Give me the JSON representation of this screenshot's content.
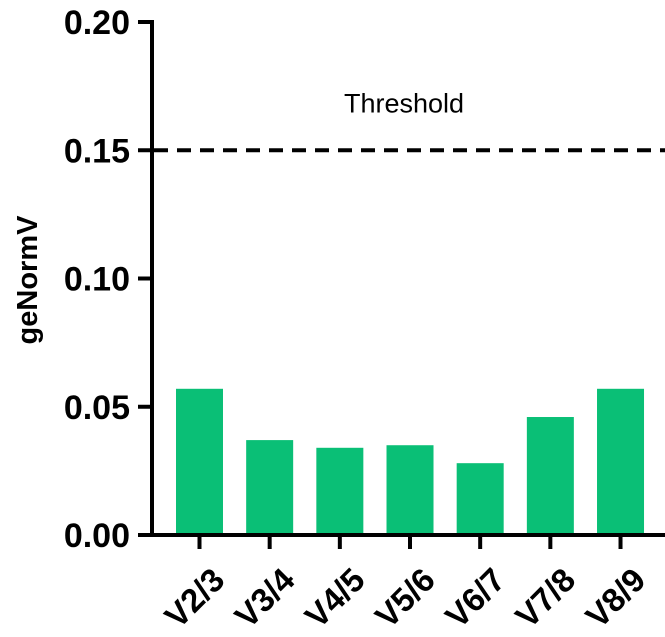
{
  "chart_data": {
    "type": "bar",
    "categories": [
      "V2/3",
      "V3/4",
      "V4/5",
      "V5/6",
      "V6/7",
      "V7/8",
      "V8/9"
    ],
    "values": [
      0.057,
      0.037,
      0.034,
      0.035,
      0.028,
      0.046,
      0.057
    ],
    "xlabel": "",
    "ylabel": "geNormV",
    "ylim": [
      0,
      0.2
    ],
    "yticks": [
      "0.00",
      "0.05",
      "0.10",
      "0.15",
      "0.20"
    ],
    "grid": false,
    "bar_color": "#0ABF76",
    "threshold": {
      "value": 0.15,
      "label": "Threshold",
      "style": "dashed",
      "color": "#000000"
    }
  }
}
